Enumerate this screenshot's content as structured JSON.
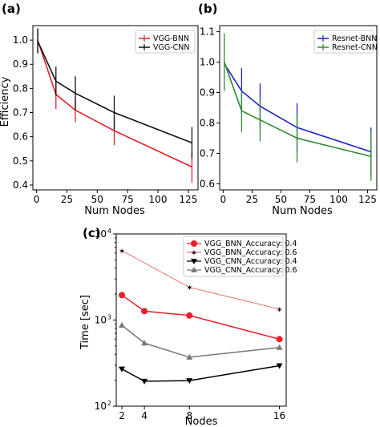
{
  "chart_data": [
    {
      "panel": "(a)",
      "type": "line",
      "xlabel": "Num Nodes",
      "ylabel": "Efficiency",
      "x": [
        1,
        16,
        32,
        64,
        128
      ],
      "xticks": [
        "0",
        "25",
        "50",
        "75",
        "100",
        "125"
      ],
      "yticks": [
        "0.4",
        "0.5",
        "0.6",
        "0.7",
        "0.8",
        "0.9",
        "1.0"
      ],
      "xlim": [
        -3,
        133
      ],
      "ylim": [
        0.38,
        1.06
      ],
      "legend_position": "top-right",
      "series": [
        {
          "name": "VGG-BNN",
          "color": "#e8202a",
          "values": [
            1.0,
            0.775,
            0.71,
            0.625,
            0.475
          ],
          "err": [
            0.05,
            0.06,
            0.05,
            0.06,
            0.065
          ]
        },
        {
          "name": "VGG-CNN",
          "color": "#111111",
          "values": [
            0.995,
            0.83,
            0.78,
            0.7,
            0.575
          ],
          "err": [
            0.05,
            0.06,
            0.07,
            0.07,
            0.065
          ]
        }
      ]
    },
    {
      "panel": "(b)",
      "type": "line",
      "xlabel": "Num Nodes",
      "ylabel": "",
      "x": [
        1,
        16,
        32,
        64,
        128
      ],
      "xticks": [
        "0",
        "25",
        "50",
        "75",
        "100",
        "125"
      ],
      "yticks": [
        "0.6",
        "0.7",
        "0.8",
        "0.9",
        "1.0",
        "1.1"
      ],
      "xlim": [
        -3,
        133
      ],
      "ylim": [
        0.58,
        1.12
      ],
      "legend_position": "top-right",
      "series": [
        {
          "name": "Resnet-BNN",
          "color": "#2020c8",
          "values": [
            0.995,
            0.905,
            0.855,
            0.785,
            0.705
          ],
          "err": [
            0.0,
            0.075,
            0.075,
            0.08,
            0.08
          ]
        },
        {
          "name": "Resnet-CNN",
          "color": "#2e8b2e",
          "values": [
            1.0,
            0.84,
            0.81,
            0.75,
            0.69
          ],
          "err": [
            0.095,
            0.07,
            0.07,
            0.08,
            0.08
          ]
        }
      ]
    },
    {
      "panel": "(c)",
      "type": "line",
      "xlabel": "Nodes",
      "ylabel": "Time [sec]",
      "x": [
        2,
        4,
        8,
        16
      ],
      "xticks": [
        "2",
        "4",
        "8",
        "16"
      ],
      "yscale": "log",
      "ylim": [
        100,
        10000
      ],
      "yticks": [
        "10",
        "10",
        "10"
      ],
      "ytick_exponents": [
        "2",
        "3",
        "4"
      ],
      "legend_position": "top-right",
      "series": [
        {
          "name": "VGG_BNN_Accuracy: 0.4",
          "color": "#e8202a",
          "marker": "circle",
          "values": [
            1950,
            1270,
            1130,
            600
          ]
        },
        {
          "name": "VGG_BNN_Accuracy: 0.6",
          "color": "#f07070",
          "marker": "star",
          "values": [
            6400,
            null,
            2400,
            1340
          ]
        },
        {
          "name": "VGG_CNN_Accuracy: 0.4",
          "color": "#000000",
          "marker": "triangle-down",
          "values": [
            270,
            195,
            198,
            295
          ]
        },
        {
          "name": "VGG_CNN_Accuracy: 0.6",
          "color": "#777777",
          "marker": "triangle-up",
          "values": [
            870,
            540,
            370,
            480
          ]
        }
      ]
    }
  ]
}
